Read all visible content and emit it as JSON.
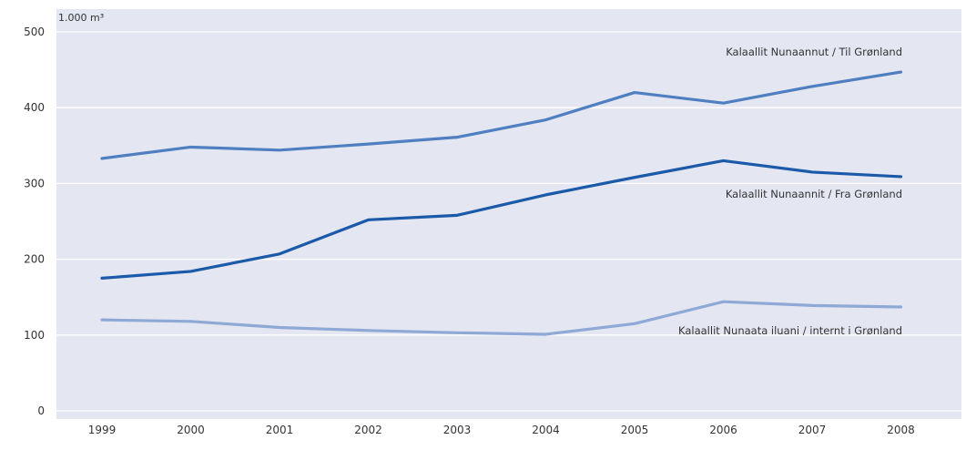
{
  "chart_data": {
    "type": "line",
    "unit_label": "1.000 m³",
    "x": [
      "1999",
      "2000",
      "2001",
      "2002",
      "2003",
      "2004",
      "2005",
      "2006",
      "2007",
      "2008"
    ],
    "ylim": [
      0,
      500
    ],
    "yticks": [
      0,
      100,
      200,
      300,
      400,
      500
    ],
    "grid": true,
    "series": [
      {
        "name": "Kalaallit Nunaannut / Til Grønland",
        "color": "#4f7fc0",
        "values": [
          333,
          348,
          344,
          352,
          361,
          384,
          420,
          406,
          428,
          447
        ]
      },
      {
        "name": "Kalaallit Nunaannit / Fra Grønland",
        "color": "#1b5aa8",
        "values": [
          175,
          184,
          207,
          252,
          258,
          285,
          308,
          330,
          315,
          309
        ]
      },
      {
        "name": "Kalaallit Nunaata iluani / internt i Grønland",
        "color": "#8ea9d6",
        "values": [
          120,
          118,
          110,
          106,
          103,
          101,
          115,
          144,
          139,
          137
        ]
      }
    ]
  }
}
